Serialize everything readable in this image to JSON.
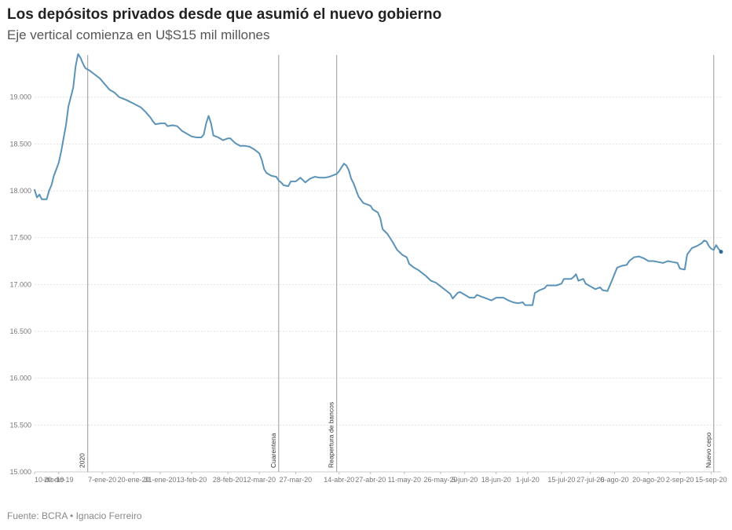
{
  "header": {
    "title": "Los depósitos privados desde que asumió el nuevo gobierno",
    "subtitle": "Eje vertical comienza en U$S15 mil millones"
  },
  "footer": {
    "source": "Fuente: BCRA • Ignacio Ferreiro"
  },
  "colors": {
    "line": "#5b93b8",
    "annotation": "#9a9a9a",
    "grid": "#e2e2e2",
    "text": "#333333"
  },
  "chart_data": {
    "type": "line",
    "title": "Los depósitos privados desde que asumió el nuevo gobierno",
    "subtitle": "Eje vertical comienza en U$S15 mil millones",
    "xlabel": "",
    "ylabel": "",
    "ylim": [
      15000,
      19450
    ],
    "xlim": [
      "2019-12-10",
      "2020-09-19"
    ],
    "yticks": [
      15000,
      15500,
      16000,
      16500,
      17000,
      17500,
      18000,
      18500,
      19000
    ],
    "ytick_labels": [
      "15.000",
      "15.500",
      "16.000",
      "16.500",
      "17.000",
      "17.500",
      "18.000",
      "18.500",
      "19.000"
    ],
    "xticks": [
      "2019-12-10",
      "2019-12-20",
      "2020-01-07",
      "2020-01-20",
      "2020-01-31",
      "2020-02-13",
      "2020-02-28",
      "2020-03-12",
      "2020-03-27",
      "2020-04-14",
      "2020-04-27",
      "2020-05-11",
      "2020-05-26",
      "2020-06-05",
      "2020-06-18",
      "2020-07-01",
      "2020-07-15",
      "2020-07-27",
      "2020-08-06",
      "2020-08-20",
      "2020-09-02",
      "2020-09-15"
    ],
    "xtick_labels": [
      "10-dic-19",
      "20-dic-19",
      "7-ene-20",
      "20-ene-20",
      "31-ene-20",
      "13-feb-20",
      "28-feb-20",
      "12-mar-20",
      "27-mar-20",
      "14-abr-20",
      "27-abr-20",
      "11-may-20",
      "26-may-20",
      "5-jun-20",
      "18-jun-20",
      "1-jul-20",
      "15-jul-20",
      "27-jul-20",
      "6-ago-20",
      "20-ago-20",
      "2-sep-20",
      "15-sep-20"
    ],
    "grid": true,
    "annotations": [
      {
        "date": "2020-01-01",
        "label": "2020"
      },
      {
        "date": "2020-03-20",
        "label": "Cuarentena"
      },
      {
        "date": "2020-04-13",
        "label": "Reapertura de bancos"
      },
      {
        "date": "2020-09-16",
        "label": "Nuevo cepo"
      }
    ],
    "series": [
      {
        "values": [
          [
            "2019-12-10",
            18010
          ],
          [
            "2019-12-11",
            17930
          ],
          [
            "2019-12-12",
            17960
          ],
          [
            "2019-12-13",
            17910
          ],
          [
            "2019-12-14",
            17910
          ],
          [
            "2019-12-15",
            17910
          ],
          [
            "2019-12-16",
            18000
          ],
          [
            "2019-12-17",
            18060
          ],
          [
            "2019-12-18",
            18160
          ],
          [
            "2019-12-19",
            18230
          ],
          [
            "2019-12-20",
            18300
          ],
          [
            "2019-12-21",
            18420
          ],
          [
            "2019-12-22",
            18560
          ],
          [
            "2019-12-23",
            18700
          ],
          [
            "2019-12-24",
            18900
          ],
          [
            "2019-12-26",
            19100
          ],
          [
            "2019-12-27",
            19330
          ],
          [
            "2019-12-28",
            19460
          ],
          [
            "2019-12-29",
            19420
          ],
          [
            "2019-12-30",
            19360
          ],
          [
            "2019-12-31",
            19310
          ],
          [
            "2020-01-02",
            19280
          ],
          [
            "2020-01-04",
            19240
          ],
          [
            "2020-01-06",
            19200
          ],
          [
            "2020-01-08",
            19140
          ],
          [
            "2020-01-10",
            19080
          ],
          [
            "2020-01-12",
            19050
          ],
          [
            "2020-01-14",
            19000
          ],
          [
            "2020-01-17",
            18970
          ],
          [
            "2020-01-20",
            18930
          ],
          [
            "2020-01-23",
            18890
          ],
          [
            "2020-01-25",
            18840
          ],
          [
            "2020-01-27",
            18780
          ],
          [
            "2020-01-28",
            18740
          ],
          [
            "2020-01-29",
            18710
          ],
          [
            "2020-01-31",
            18720
          ],
          [
            "2020-02-02",
            18720
          ],
          [
            "2020-02-03",
            18690
          ],
          [
            "2020-02-05",
            18700
          ],
          [
            "2020-02-07",
            18690
          ],
          [
            "2020-02-09",
            18640
          ],
          [
            "2020-02-11",
            18610
          ],
          [
            "2020-02-13",
            18580
          ],
          [
            "2020-02-15",
            18570
          ],
          [
            "2020-02-17",
            18570
          ],
          [
            "2020-02-18",
            18600
          ],
          [
            "2020-02-19",
            18720
          ],
          [
            "2020-02-20",
            18800
          ],
          [
            "2020-02-21",
            18720
          ],
          [
            "2020-02-22",
            18590
          ],
          [
            "2020-02-24",
            18570
          ],
          [
            "2020-02-26",
            18540
          ],
          [
            "2020-02-28",
            18560
          ],
          [
            "2020-02-29",
            18560
          ],
          [
            "2020-03-02",
            18510
          ],
          [
            "2020-03-04",
            18480
          ],
          [
            "2020-03-06",
            18480
          ],
          [
            "2020-03-08",
            18470
          ],
          [
            "2020-03-10",
            18440
          ],
          [
            "2020-03-12",
            18400
          ],
          [
            "2020-03-13",
            18330
          ],
          [
            "2020-03-14",
            18230
          ],
          [
            "2020-03-15",
            18190
          ],
          [
            "2020-03-17",
            18160
          ],
          [
            "2020-03-19",
            18150
          ],
          [
            "2020-03-20",
            18110
          ],
          [
            "2020-03-21",
            18090
          ],
          [
            "2020-03-22",
            18060
          ],
          [
            "2020-03-24",
            18050
          ],
          [
            "2020-03-25",
            18100
          ],
          [
            "2020-03-27",
            18100
          ],
          [
            "2020-03-29",
            18140
          ],
          [
            "2020-03-31",
            18090
          ],
          [
            "2020-04-02",
            18130
          ],
          [
            "2020-04-04",
            18150
          ],
          [
            "2020-04-06",
            18140
          ],
          [
            "2020-04-08",
            18140
          ],
          [
            "2020-04-10",
            18150
          ],
          [
            "2020-04-12",
            18170
          ],
          [
            "2020-04-13",
            18180
          ],
          [
            "2020-04-14",
            18210
          ],
          [
            "2020-04-15",
            18250
          ],
          [
            "2020-04-16",
            18290
          ],
          [
            "2020-04-17",
            18270
          ],
          [
            "2020-04-18",
            18220
          ],
          [
            "2020-04-19",
            18130
          ],
          [
            "2020-04-20",
            18080
          ],
          [
            "2020-04-21",
            18010
          ],
          [
            "2020-04-22",
            17940
          ],
          [
            "2020-04-24",
            17870
          ],
          [
            "2020-04-27",
            17840
          ],
          [
            "2020-04-28",
            17800
          ],
          [
            "2020-04-30",
            17770
          ],
          [
            "2020-05-01",
            17710
          ],
          [
            "2020-05-02",
            17590
          ],
          [
            "2020-05-04",
            17540
          ],
          [
            "2020-05-06",
            17460
          ],
          [
            "2020-05-08",
            17370
          ],
          [
            "2020-05-10",
            17320
          ],
          [
            "2020-05-12",
            17290
          ],
          [
            "2020-05-13",
            17220
          ],
          [
            "2020-05-15",
            17180
          ],
          [
            "2020-05-17",
            17150
          ],
          [
            "2020-05-20",
            17090
          ],
          [
            "2020-05-22",
            17040
          ],
          [
            "2020-05-24",
            17020
          ],
          [
            "2020-05-26",
            16980
          ],
          [
            "2020-05-28",
            16940
          ],
          [
            "2020-05-30",
            16900
          ],
          [
            "2020-05-31",
            16850
          ],
          [
            "2020-06-01",
            16880
          ],
          [
            "2020-06-02",
            16910
          ],
          [
            "2020-06-03",
            16920
          ],
          [
            "2020-06-05",
            16890
          ],
          [
            "2020-06-07",
            16860
          ],
          [
            "2020-06-09",
            16860
          ],
          [
            "2020-06-10",
            16890
          ],
          [
            "2020-06-12",
            16870
          ],
          [
            "2020-06-14",
            16850
          ],
          [
            "2020-06-16",
            16830
          ],
          [
            "2020-06-18",
            16860
          ],
          [
            "2020-06-21",
            16860
          ],
          [
            "2020-06-23",
            16830
          ],
          [
            "2020-06-25",
            16810
          ],
          [
            "2020-06-27",
            16800
          ],
          [
            "2020-06-29",
            16810
          ],
          [
            "2020-06-30",
            16780
          ],
          [
            "2020-07-01",
            16780
          ],
          [
            "2020-07-03",
            16780
          ],
          [
            "2020-07-04",
            16910
          ],
          [
            "2020-07-06",
            16940
          ],
          [
            "2020-07-08",
            16960
          ],
          [
            "2020-07-09",
            16990
          ],
          [
            "2020-07-11",
            16990
          ],
          [
            "2020-07-13",
            16990
          ],
          [
            "2020-07-15",
            17010
          ],
          [
            "2020-07-16",
            17060
          ],
          [
            "2020-07-18",
            17060
          ],
          [
            "2020-07-19",
            17060
          ],
          [
            "2020-07-20",
            17080
          ],
          [
            "2020-07-21",
            17110
          ],
          [
            "2020-07-22",
            17040
          ],
          [
            "2020-07-24",
            17060
          ],
          [
            "2020-07-25",
            17010
          ],
          [
            "2020-07-27",
            16980
          ],
          [
            "2020-07-29",
            16950
          ],
          [
            "2020-07-31",
            16970
          ],
          [
            "2020-08-01",
            16940
          ],
          [
            "2020-08-03",
            16930
          ],
          [
            "2020-08-05",
            17050
          ],
          [
            "2020-08-07",
            17180
          ],
          [
            "2020-08-09",
            17200
          ],
          [
            "2020-08-11",
            17210
          ],
          [
            "2020-08-12",
            17250
          ],
          [
            "2020-08-14",
            17290
          ],
          [
            "2020-08-16",
            17300
          ],
          [
            "2020-08-18",
            17280
          ],
          [
            "2020-08-20",
            17250
          ],
          [
            "2020-08-22",
            17250
          ],
          [
            "2020-08-24",
            17240
          ],
          [
            "2020-08-26",
            17230
          ],
          [
            "2020-08-28",
            17250
          ],
          [
            "2020-08-30",
            17240
          ],
          [
            "2020-09-01",
            17230
          ],
          [
            "2020-09-02",
            17170
          ],
          [
            "2020-09-04",
            17160
          ],
          [
            "2020-09-05",
            17320
          ],
          [
            "2020-09-07",
            17390
          ],
          [
            "2020-09-09",
            17410
          ],
          [
            "2020-09-11",
            17440
          ],
          [
            "2020-09-12",
            17470
          ],
          [
            "2020-09-13",
            17460
          ],
          [
            "2020-09-14",
            17410
          ],
          [
            "2020-09-15",
            17380
          ],
          [
            "2020-09-16",
            17370
          ],
          [
            "2020-09-17",
            17420
          ],
          [
            "2020-09-18",
            17380
          ],
          [
            "2020-09-19",
            17350
          ]
        ]
      }
    ]
  }
}
